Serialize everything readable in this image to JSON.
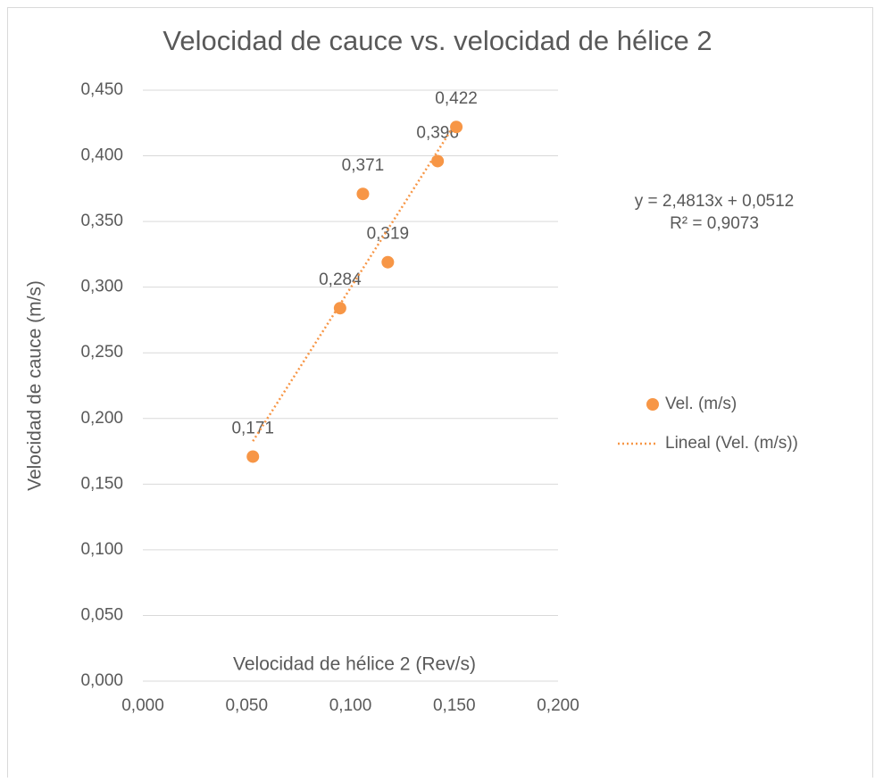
{
  "chart_data": {
    "type": "scatter",
    "title": "Velocidad de cauce vs. velocidad de hélice 2",
    "x_label": "Velocidad de hélice 2 (Rev/s)",
    "y_label": "Velocidad de cauce (m/s)",
    "xlim": [
      0,
      0.2
    ],
    "ylim": [
      0,
      0.45
    ],
    "xticks": [
      {
        "value": 0,
        "label": "0,000"
      },
      {
        "value": 0.05,
        "label": "0,050"
      },
      {
        "value": 0.1,
        "label": "0,100"
      },
      {
        "value": 0.15,
        "label": "0,150"
      },
      {
        "value": 0.2,
        "label": "0,200"
      }
    ],
    "yticks": [
      {
        "value": 0,
        "label": "0,000"
      },
      {
        "value": 0.05,
        "label": "0,050"
      },
      {
        "value": 0.1,
        "label": "0,100"
      },
      {
        "value": 0.15,
        "label": "0,150"
      },
      {
        "value": 0.2,
        "label": "0,200"
      },
      {
        "value": 0.25,
        "label": "0,250"
      },
      {
        "value": 0.3,
        "label": "0,300"
      },
      {
        "value": 0.35,
        "label": "0,350"
      },
      {
        "value": 0.4,
        "label": "0,400"
      },
      {
        "value": 0.45,
        "label": "0,450"
      }
    ],
    "grid": true,
    "legend": "right",
    "series": [
      {
        "name": "Vel. (m/s)",
        "color": "#f79646",
        "x": [
          0.053,
          0.095,
          0.106,
          0.118,
          0.142,
          0.151
        ],
        "values": [
          0.171,
          0.284,
          0.371,
          0.319,
          0.396,
          0.422
        ],
        "value_labels": [
          "0,171",
          "0,284",
          "0,371",
          "0,319",
          "0,396",
          "0,422"
        ]
      }
    ],
    "trendline": {
      "name": "Lineal (Vel. (m/s))",
      "slope": 2.4813,
      "intercept": 0.0512,
      "equation": "y = 2,4813x + 0,0512",
      "r2": "R² = 0,9073"
    }
  }
}
